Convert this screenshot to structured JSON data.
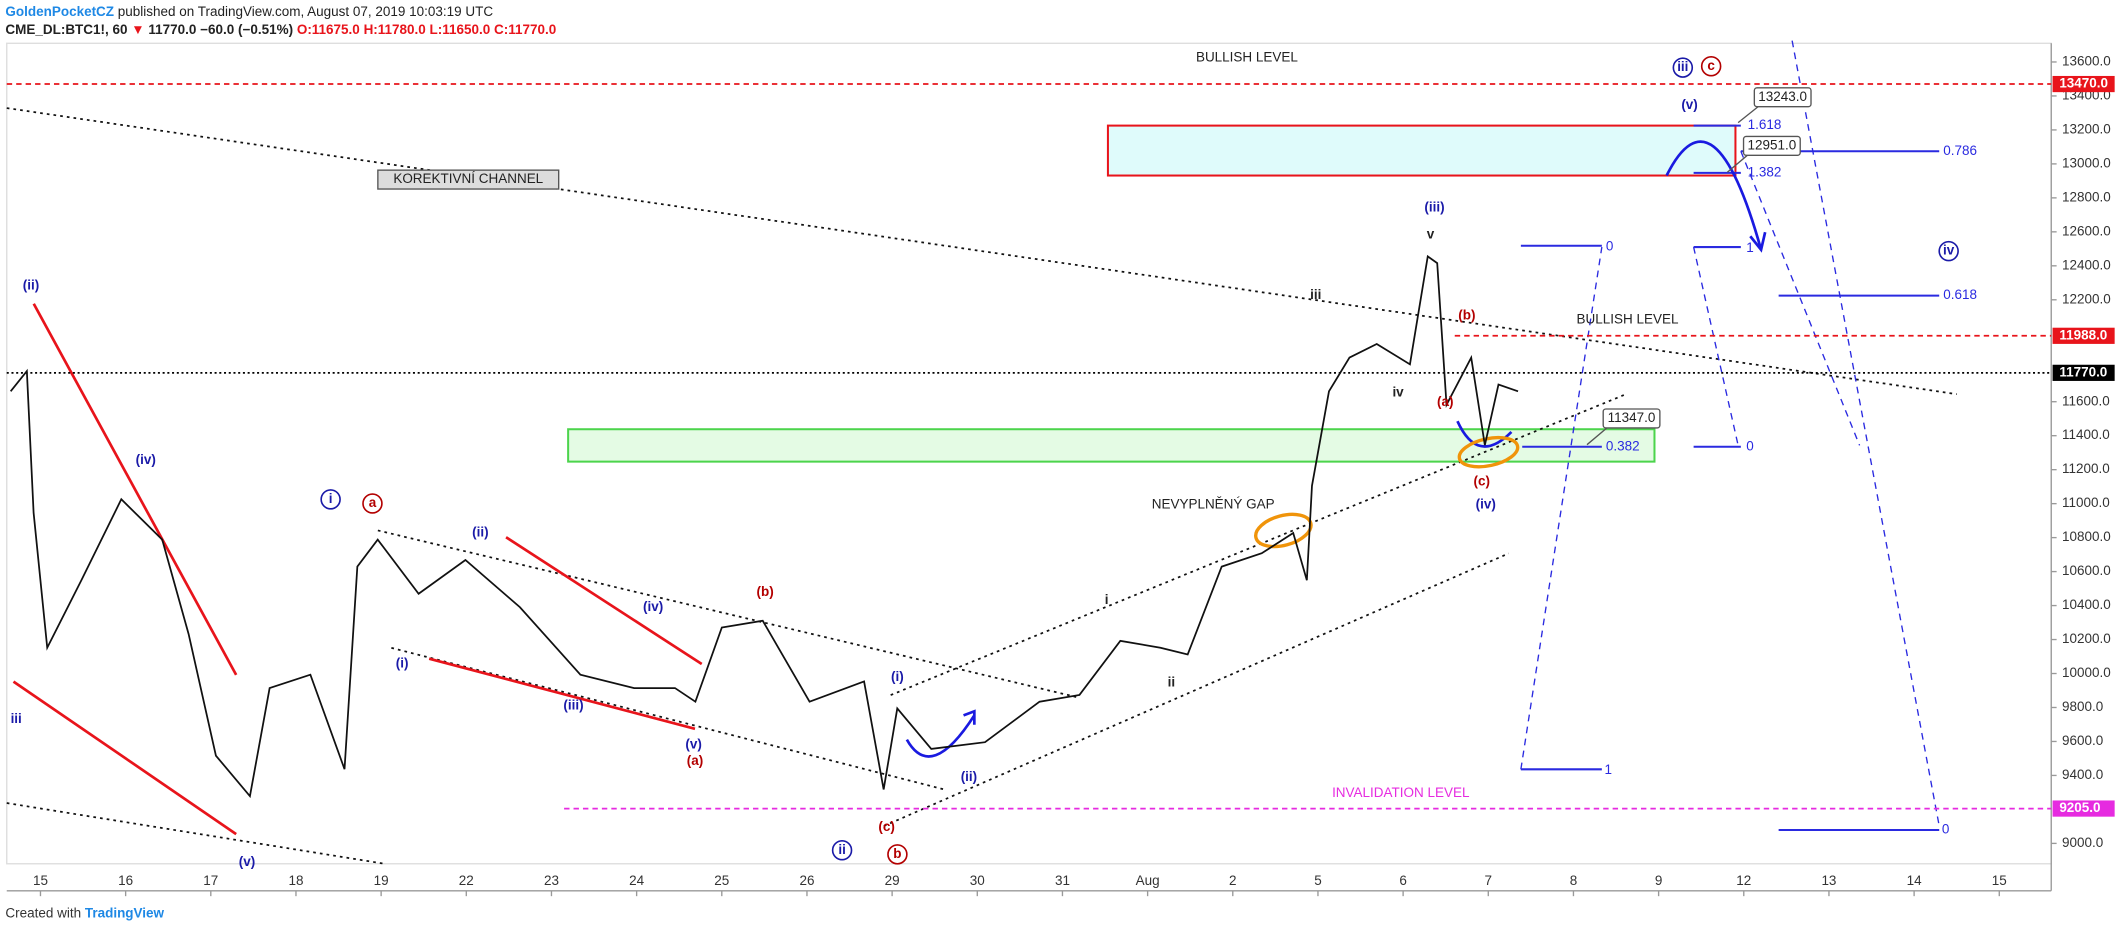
{
  "header": {
    "author": "GoldenPocketCZ",
    "published": "published on TradingView.com, August 07, 2019 10:03:19 UTC",
    "symbol": "CME_DL:BTC1!, 60",
    "arrow": "▼",
    "quote": "11770.0 −60.0 (−0.51%)",
    "ohlc": [
      "O:11675.0",
      "H:11780.0",
      "L:11650.0",
      "C:11770.0"
    ]
  },
  "footer": {
    "prefix": "Created with",
    "brand": "TradingView"
  },
  "chart_data": {
    "type": "line",
    "color": "#111111",
    "x": [
      -0.35,
      -0.16,
      -0.08,
      0.08,
      0.48,
      0.95,
      1.43,
      1.74,
      2.06,
      2.46,
      2.69,
      3.17,
      3.57,
      3.72,
      3.96,
      4.44,
      4.99,
      5.63,
      6.34,
      6.97,
      7.45,
      7.69,
      8.0,
      8.48,
      9.03,
      9.67,
      9.9,
      10.06,
      10.46,
      11.09,
      11.73,
      12.2,
      12.68,
      13.15,
      13.47,
      13.87,
      14.34,
      14.71,
      14.87,
      14.93,
      15.13,
      15.37,
      15.69,
      16.08,
      16.29,
      16.4,
      16.51,
      16.8,
      16.96,
      17.12,
      17.35
    ],
    "values": [
      11661,
      11780,
      10946,
      10152,
      10549,
      11026,
      10788,
      10231,
      9516,
      9278,
      9914,
      9993,
      9437,
      10629,
      10788,
      10470,
      10668,
      10390,
      9993,
      9914,
      9914,
      9834,
      10271,
      10311,
      9834,
      9953,
      9318,
      9794,
      9556,
      9596,
      9834,
      9874,
      10192,
      10152,
      10112,
      10629,
      10708,
      10827,
      10549,
      11105,
      11661,
      11860,
      11940,
      11820,
      12456,
      12416,
      11582,
      11860,
      11344,
      11701,
      11661
    ],
    "xlim": [
      -0.396,
      23.61
    ],
    "xticks": [
      {
        "value": 0,
        "label": "15"
      },
      {
        "value": 1,
        "label": "16"
      },
      {
        "value": 2,
        "label": "17"
      },
      {
        "value": 3,
        "label": "18"
      },
      {
        "value": 4,
        "label": "19"
      },
      {
        "value": 5,
        "label": "22"
      },
      {
        "value": 6,
        "label": "23"
      },
      {
        "value": 7,
        "label": "24"
      },
      {
        "value": 8,
        "label": "25"
      },
      {
        "value": 9,
        "label": "26"
      },
      {
        "value": 10,
        "label": "29"
      },
      {
        "value": 11,
        "label": "30"
      },
      {
        "value": 12,
        "label": "31"
      },
      {
        "value": 13,
        "label": "Aug"
      },
      {
        "value": 14,
        "label": "2"
      },
      {
        "value": 15,
        "label": "5"
      },
      {
        "value": 16,
        "label": "6"
      },
      {
        "value": 17,
        "label": "7"
      },
      {
        "value": 18,
        "label": "8"
      },
      {
        "value": 19,
        "label": "9"
      },
      {
        "value": 20,
        "label": "12"
      },
      {
        "value": 21,
        "label": "13"
      },
      {
        "value": 22,
        "label": "14"
      },
      {
        "value": 23,
        "label": "15"
      }
    ],
    "ylim": [
      8880,
      13710
    ],
    "yticks": [
      {
        "value": 13600,
        "label": "13600.0"
      },
      {
        "value": 13400,
        "label": "13400.0"
      },
      {
        "value": 13200,
        "label": "13200.0"
      },
      {
        "value": 13000,
        "label": "13000.0"
      },
      {
        "value": 12800,
        "label": "12800.0"
      },
      {
        "value": 12600,
        "label": "12600.0"
      },
      {
        "value": 12400,
        "label": "12400.0"
      },
      {
        "value": 12200,
        "label": "12200.0"
      },
      {
        "value": 11600,
        "label": "11600.0"
      },
      {
        "value": 11400,
        "label": "11400.0"
      },
      {
        "value": 11200,
        "label": "11200.0"
      },
      {
        "value": 11000,
        "label": "11000.0"
      },
      {
        "value": 10800,
        "label": "10800.0"
      },
      {
        "value": 10600,
        "label": "10600.0"
      },
      {
        "value": 10400,
        "label": "10400.0"
      },
      {
        "value": 10200,
        "label": "10200.0"
      },
      {
        "value": 10000,
        "label": "10000.0"
      },
      {
        "value": 9800,
        "label": "9800.0"
      },
      {
        "value": 9600,
        "label": "9600.0"
      },
      {
        "value": 9400,
        "label": "9400.0"
      },
      {
        "value": 9000,
        "label": "9000.0"
      }
    ],
    "levels": [
      {
        "value": 13470,
        "label": "13470.0",
        "color": "#e8141b"
      },
      {
        "value": 11988,
        "label": "11988.0",
        "color": "#e8141b"
      },
      {
        "value": 11770,
        "label": "11770.0",
        "color": "#000000"
      },
      {
        "value": 9205,
        "label": "9205.0",
        "color": "#e62be0"
      }
    ],
    "callouts": [
      {
        "value": 13243,
        "label": "13243.0"
      },
      {
        "value": 12951,
        "label": "12951.0"
      },
      {
        "value": 11347,
        "label": "11347.0"
      }
    ],
    "annotations": [
      "BULLISH LEVEL",
      "KOREKTIVNÍ CHANNEL",
      "BULLISH LEVEL",
      "NEVYPLNĚNÝ GAP",
      "INVALIDATION LEVEL"
    ],
    "fib_labels": [
      "1.618",
      "1.382",
      "0.786",
      "0.618",
      "0",
      "1",
      "0.382",
      "0",
      "1",
      "0"
    ],
    "wave_labels": [
      "(ii)",
      "(iv)",
      "iii",
      "(v)",
      "i",
      "a",
      "(ii)",
      "(i)",
      "(iii)",
      "(iv)",
      "(v)",
      "(a)",
      "(b)",
      "(c)",
      "b",
      "ii",
      "(i)",
      "(ii)",
      "i",
      "ii",
      "iii",
      "iv",
      "v",
      "(iii)",
      "(a)",
      "(b)",
      "(c)",
      "(iv)",
      "(v)",
      "iii",
      "c",
      "iv"
    ]
  }
}
